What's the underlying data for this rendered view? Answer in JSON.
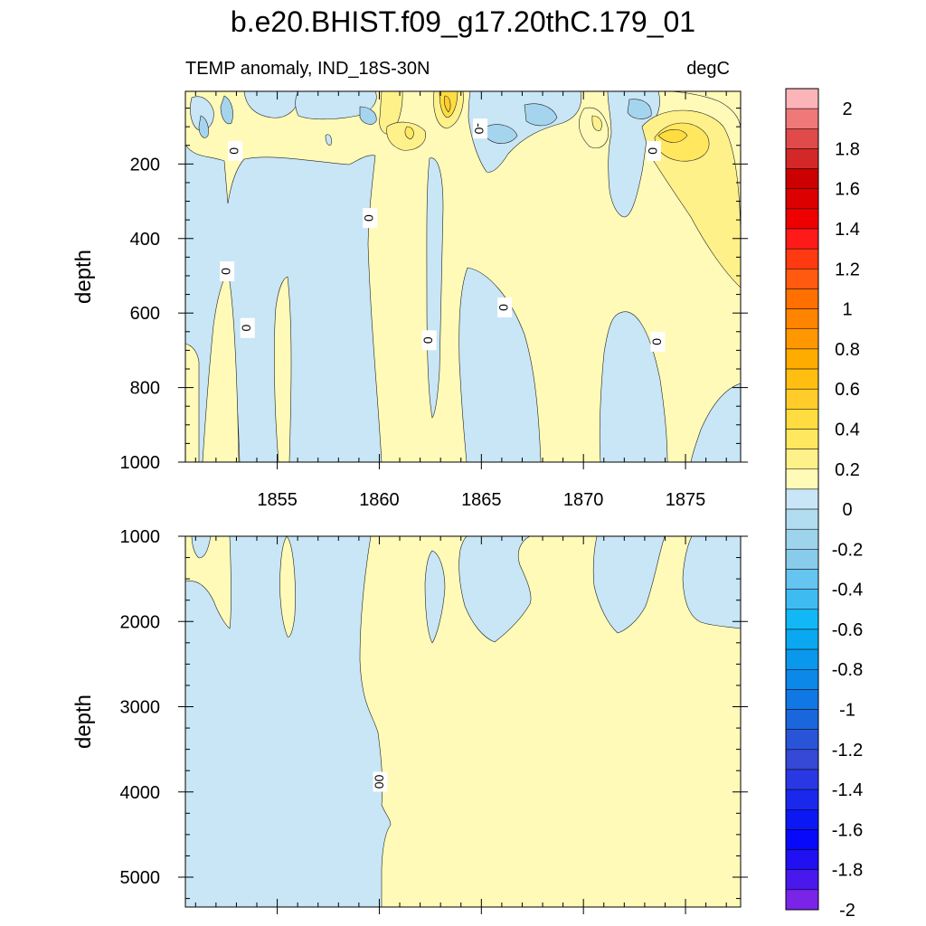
{
  "title": "b.e20.BHIST.f09_g17.20thC.179_01",
  "subtitle_left": "TEMP anomaly, IND_18S-30N",
  "subtitle_right": "degC",
  "chart_data": {
    "type": "heatmap",
    "title": "b.e20.BHIST.f09_g17.20thC.179_01",
    "variable": "TEMP anomaly, IND_18S-30N",
    "units": "degC",
    "x": {
      "range": [
        1850.5,
        1877.7
      ],
      "ticks": [
        1855,
        1860,
        1865,
        1870,
        1875
      ],
      "tick_labels": [
        "1855",
        "1860",
        "1865",
        "1870",
        "1875"
      ]
    },
    "panels": [
      {
        "name": "upper",
        "ylabel": "depth",
        "y_range": [
          5,
          1000
        ],
        "y_ticks": [
          200,
          400,
          600,
          800,
          1000
        ],
        "y_tick_labels": [
          "200",
          "400",
          "600",
          "800",
          "1000"
        ],
        "contour_labels": [
          {
            "x": 1852.9,
            "y": 165,
            "text": "0"
          },
          {
            "x": 1864.9,
            "y": 105,
            "text": "-0"
          },
          {
            "x": 1873.4,
            "y": 165,
            "text": "0"
          },
          {
            "x": 1859.5,
            "y": 345,
            "text": "0"
          },
          {
            "x": 1852.5,
            "y": 488,
            "text": "0"
          },
          {
            "x": 1853.5,
            "y": 640,
            "text": "0"
          },
          {
            "x": 1862.4,
            "y": 673,
            "text": "0"
          },
          {
            "x": 1866.1,
            "y": 585,
            "text": "0"
          },
          {
            "x": 1873.6,
            "y": 677,
            "text": "0"
          }
        ]
      },
      {
        "name": "lower",
        "ylabel": "depth",
        "y_range": [
          1000,
          5350
        ],
        "y_ticks": [
          1000,
          2000,
          3000,
          4000,
          5000
        ],
        "y_tick_labels": [
          "1000",
          "2000",
          "3000",
          "4000",
          "5000"
        ],
        "contour_labels": [
          {
            "x": 1860.0,
            "y": 3880,
            "text": "00"
          }
        ]
      }
    ],
    "colorbar": {
      "levels": [
        2,
        1.9,
        1.8,
        1.7,
        1.6,
        1.5,
        1.4,
        1.3,
        1.2,
        1.1,
        1,
        0.9,
        0.8,
        0.7,
        0.6,
        0.5,
        0.4,
        0.3,
        0.2,
        0.1,
        0,
        -0.1,
        -0.2,
        -0.3,
        -0.4,
        -0.5,
        -0.6,
        -0.7,
        -0.8,
        -0.9,
        -1,
        -1.1,
        -1.2,
        -1.3,
        -1.4,
        -1.5,
        -1.6,
        -1.7,
        -1.8,
        -1.9,
        -2
      ],
      "labeled_levels": [
        2,
        1.8,
        1.6,
        1.4,
        1.2,
        1,
        0.8,
        0.6,
        0.4,
        0.2,
        0,
        -0.2,
        -0.4,
        -0.6,
        -0.8,
        -1,
        -1.2,
        -1.4,
        -1.6,
        -1.8,
        -2
      ],
      "labels": [
        "2",
        "1.8",
        "1.6",
        "1.4",
        "1.2",
        "1",
        "0.8",
        "0.6",
        "0.4",
        "0.2",
        "0",
        "-0.2",
        "-0.4",
        "-0.6",
        "-0.8",
        "-1",
        "-1.2",
        "-1.4",
        "-1.6",
        "-1.8",
        "-2"
      ],
      "colors": [
        "#fbb4b8",
        "#ef7878",
        "#e04a4a",
        "#d42828",
        "#cc0000",
        "#dd0000",
        "#ee0000",
        "#ff1a1a",
        "#ff3a10",
        "#ff5a10",
        "#ff7000",
        "#ff8400",
        "#ff9800",
        "#ffac00",
        "#ffbe10",
        "#ffcc2a",
        "#ffdc40",
        "#ffe860",
        "#fff18a",
        "#fffab8",
        "#c8e6f5",
        "#b2dcf0",
        "#9ed3ec",
        "#89cbea",
        "#66c4f0",
        "#3ebcf2",
        "#12b8f5",
        "#0aa8f0",
        "#0a98ec",
        "#0c88e8",
        "#1078e4",
        "#1a66dc",
        "#2a54d8",
        "#3648d6",
        "#2a38e4",
        "#1a28ee",
        "#0c18f4",
        "#0808fa",
        "#2010f2",
        "#4818ec",
        "#7a24e8"
      ]
    },
    "colors": {
      "negative_small": "#c8e6f5",
      "negative_mid": "#a5d5ee",
      "positive_small": "#fffab8",
      "positive_mid": "#fff18a",
      "positive_high": "#ffe860",
      "positive_peak": "#ffdc40"
    }
  }
}
